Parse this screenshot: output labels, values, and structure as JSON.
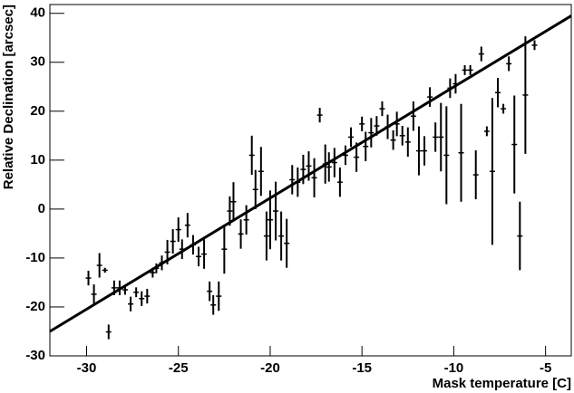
{
  "chart_data": {
    "type": "errorbar",
    "x_label": "Mask temperature [C]",
    "y_label": "Relative Declination [arcsec]",
    "xlim": [
      -32,
      -3.6
    ],
    "ylim": [
      -30,
      41.8
    ],
    "xticks": [
      -30,
      -25,
      -20,
      -15,
      -10,
      -5
    ],
    "yticks": [
      -30,
      -20,
      -10,
      0,
      10,
      20,
      30,
      40
    ],
    "color": "#000000",
    "x": [
      -29.9,
      -29.6,
      -29.3,
      -29.0,
      -28.8,
      -28.5,
      -28.2,
      -27.9,
      -27.6,
      -27.3,
      -27.0,
      -26.7,
      -26.4,
      -26.2,
      -25.9,
      -25.6,
      -25.3,
      -25.0,
      -24.8,
      -24.5,
      -24.2,
      -23.9,
      -23.6,
      -23.3,
      -23.1,
      -22.8,
      -22.5,
      -22.2,
      -22.0,
      -21.6,
      -21.3,
      -21.0,
      -20.8,
      -20.5,
      -20.2,
      -20.0,
      -19.7,
      -19.4,
      -19.1,
      -18.8,
      -18.5,
      -18.2,
      -17.9,
      -17.6,
      -17.3,
      -17.0,
      -16.8,
      -16.5,
      -16.2,
      -15.9,
      -15.6,
      -15.3,
      -15.0,
      -14.8,
      -14.5,
      -14.2,
      -13.9,
      -13.6,
      -13.3,
      -13.1,
      -12.8,
      -12.5,
      -12.2,
      -11.9,
      -11.6,
      -11.3,
      -11.0,
      -10.7,
      -10.4,
      -10.2,
      -9.9,
      -9.6,
      -9.4,
      -9.1,
      -8.8,
      -8.5,
      -8.2,
      -7.9,
      -7.6,
      -7.3,
      -7.0,
      -6.7,
      -6.4,
      -6.1,
      -5.6
    ],
    "y": [
      -14.1,
      -17.4,
      -11.5,
      -12.5,
      -25.1,
      -16.1,
      -16.1,
      -16.5,
      -19.4,
      -17.0,
      -18.3,
      -17.8,
      -13.0,
      -12.1,
      -11.0,
      -8.8,
      -6.6,
      -4.2,
      -8.2,
      -3.3,
      -7.3,
      -9.7,
      -9.2,
      -16.8,
      -19.6,
      -17.8,
      -8.2,
      -0.4,
      1.5,
      -5.1,
      -2.2,
      11.0,
      4.0,
      7.7,
      -5.5,
      -2.2,
      -0.4,
      -5.5,
      -7.0,
      6.0,
      5.5,
      8.1,
      8.8,
      6.4,
      19.2,
      9.2,
      8.6,
      9.5,
      5.5,
      11.0,
      14.7,
      10.6,
      17.4,
      12.8,
      15.6,
      17.0,
      20.5,
      16.8,
      14.1,
      17.4,
      15.0,
      13.7,
      19.0,
      11.9,
      11.9,
      22.9,
      14.7,
      14.7,
      11.0,
      24.7,
      25.6,
      11.5,
      28.4,
      28.4,
      7.0,
      31.7,
      15.9,
      7.7,
      23.8,
      20.5,
      29.7,
      13.2,
      -5.5,
      23.3,
      33.5
    ],
    "yerr": [
      1.5,
      2,
      2.5,
      0.5,
      1.5,
      1.5,
      1.5,
      1,
      1.5,
      1,
      1.5,
      1.5,
      1,
      1,
      1.5,
      2.5,
      2.5,
      2.5,
      2,
      2.5,
      2,
      2,
      3,
      2,
      2,
      3,
      5,
      3,
      4,
      3,
      3,
      4,
      4,
      5,
      5,
      6,
      6,
      5,
      5,
      3,
      3,
      3,
      3,
      4,
      1.5,
      4,
      3,
      3,
      3,
      2,
      2,
      3,
      1.5,
      3,
      3,
      2,
      1.5,
      2.5,
      2,
      2.5,
      2,
      3,
      3,
      5,
      3,
      2,
      3,
      7,
      10,
      2,
      2,
      10,
      1,
      1,
      5,
      1.5,
      1,
      15,
      3,
      1,
      1.5,
      10,
      7,
      12,
      1
    ],
    "fit": {
      "x": [
        -32,
        -3.6
      ],
      "y": [
        -25,
        39.5
      ]
    }
  }
}
